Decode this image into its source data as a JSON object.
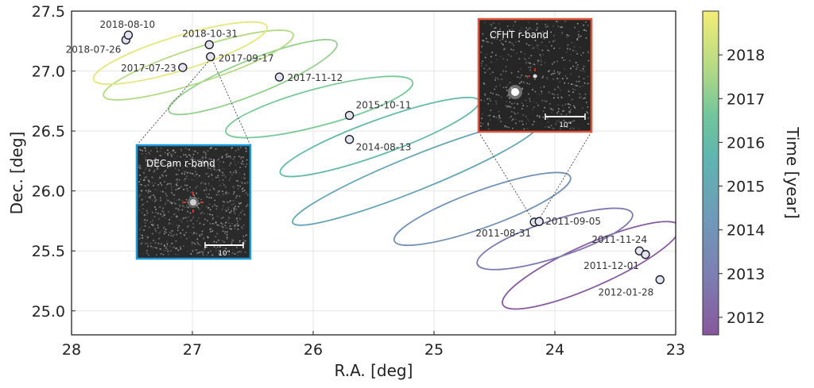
{
  "chart_data": {
    "type": "scatter",
    "xlabel": "R.A. [deg]",
    "ylabel": "Dec. [deg]",
    "xlim": [
      28,
      23
    ],
    "ylim": [
      24.8,
      27.5
    ],
    "xticks": [
      28,
      27,
      26,
      25,
      24,
      23
    ],
    "xtick_labels": [
      "28",
      "27",
      "26",
      "25",
      "24",
      "23"
    ],
    "yticks": [
      25.0,
      25.5,
      26.0,
      26.5,
      27.0,
      27.5
    ],
    "ytick_labels": [
      "25.0",
      "25.5",
      "26.0",
      "26.5",
      "27.0",
      "27.5"
    ],
    "grid": true,
    "colorbar": {
      "label": "Time [year]",
      "range": [
        2011.6,
        2019.0
      ],
      "ticks": [
        2012,
        2013,
        2014,
        2015,
        2016,
        2017,
        2018
      ],
      "tick_labels": [
        "2012",
        "2013",
        "2014",
        "2015",
        "2016",
        "2017",
        "2018"
      ],
      "colors": [
        "#87579d",
        "#7d7eb1",
        "#6f9ab8",
        "#5fb4b1",
        "#71c69b",
        "#b3d985",
        "#f4ec78"
      ]
    },
    "points": [
      {
        "label": "2011-08-31",
        "ra": 24.17,
        "dec": 25.74
      },
      {
        "label": "2011-09-05",
        "ra": 24.13,
        "dec": 25.745
      },
      {
        "label": "2011-11-24",
        "ra": 23.3,
        "dec": 25.5
      },
      {
        "label": "2011-12-01",
        "ra": 23.25,
        "dec": 25.47
      },
      {
        "label": "2012-01-28",
        "ra": 23.13,
        "dec": 25.26
      },
      {
        "label": "2014-08-13",
        "ra": 25.7,
        "dec": 26.43
      },
      {
        "label": "2015-10-11",
        "ra": 25.7,
        "dec": 26.63
      },
      {
        "label": "2017-07-23",
        "ra": 27.08,
        "dec": 27.03
      },
      {
        "label": "2017-09-17",
        "ra": 26.85,
        "dec": 27.12
      },
      {
        "label": "2017-11-12",
        "ra": 26.28,
        "dec": 26.95
      },
      {
        "label": "2018-07-26",
        "ra": 27.55,
        "dec": 27.26
      },
      {
        "label": "2018-08-10",
        "ra": 27.53,
        "dec": 27.3
      },
      {
        "label": "2018-10-31",
        "ra": 26.86,
        "dec": 27.22
      }
    ],
    "ellipses": [
      {
        "ra": 23.7,
        "dec": 25.38,
        "w": 1.6,
        "h": 0.16,
        "angle": -24,
        "time": 2011.7
      },
      {
        "ra": 24.0,
        "dec": 25.6,
        "w": 1.35,
        "h": 0.14,
        "angle": -18,
        "time": 2012.7
      },
      {
        "ra": 24.6,
        "dec": 25.85,
        "w": 1.55,
        "h": 0.14,
        "angle": -20,
        "time": 2013.7
      },
      {
        "ra": 25.15,
        "dec": 26.15,
        "w": 2.2,
        "h": 0.13,
        "angle": -22,
        "time": 2014.6
      },
      {
        "ra": 25.45,
        "dec": 26.45,
        "w": 1.75,
        "h": 0.13,
        "angle": -20,
        "time": 2015.8
      },
      {
        "ra": 25.95,
        "dec": 26.7,
        "w": 1.6,
        "h": 0.14,
        "angle": -15,
        "time": 2016.7
      },
      {
        "ra": 26.5,
        "dec": 26.95,
        "w": 1.5,
        "h": 0.13,
        "angle": -22,
        "time": 2017.2
      },
      {
        "ra": 26.95,
        "dec": 27.05,
        "w": 1.65,
        "h": 0.13,
        "angle": -18,
        "time": 2017.8
      },
      {
        "ra": 27.1,
        "dec": 27.15,
        "w": 1.5,
        "h": 0.13,
        "angle": -17,
        "time": 2018.7
      }
    ],
    "insets": [
      {
        "title": "DECam r-band",
        "scale_label": "10\"",
        "border": "#1a9be0"
      },
      {
        "title": "CFHT r-band",
        "scale_label": "10\"",
        "border": "#e2533a"
      }
    ]
  }
}
